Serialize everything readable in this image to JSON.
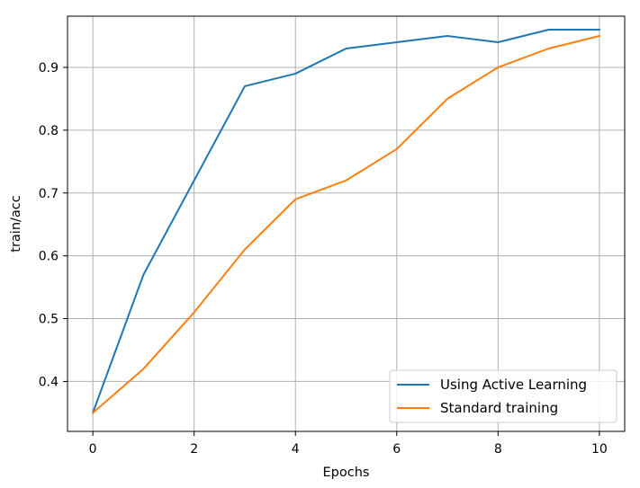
{
  "chart_data": {
    "type": "line",
    "title": "",
    "xlabel": "Epochs",
    "ylabel": "train/acc",
    "x": [
      0,
      1,
      2,
      3,
      4,
      5,
      6,
      7,
      8,
      9,
      10
    ],
    "xlim": [
      -0.5,
      10.5
    ],
    "ylim": [
      0.3205,
      0.9815
    ],
    "xticks": [
      0,
      2,
      4,
      6,
      8,
      10
    ],
    "xtick_labels": [
      "0",
      "2",
      "4",
      "6",
      "8",
      "10"
    ],
    "yticks": [
      0.4,
      0.5,
      0.6,
      0.7,
      0.8,
      0.9
    ],
    "ytick_labels": [
      "0.4",
      "0.5",
      "0.6",
      "0.7",
      "0.8",
      "0.9"
    ],
    "grid": true,
    "legend_position": "lower-right",
    "series": [
      {
        "name": "Using Active Learning",
        "color": "#1f77b4",
        "values": [
          0.35,
          0.57,
          0.72,
          0.87,
          0.89,
          0.93,
          0.94,
          0.95,
          0.94,
          0.96,
          0.96
        ]
      },
      {
        "name": "Standard training",
        "color": "#ff7f0e",
        "values": [
          0.35,
          0.42,
          0.51,
          0.61,
          0.69,
          0.72,
          0.77,
          0.85,
          0.9,
          0.93,
          0.95
        ]
      }
    ]
  }
}
